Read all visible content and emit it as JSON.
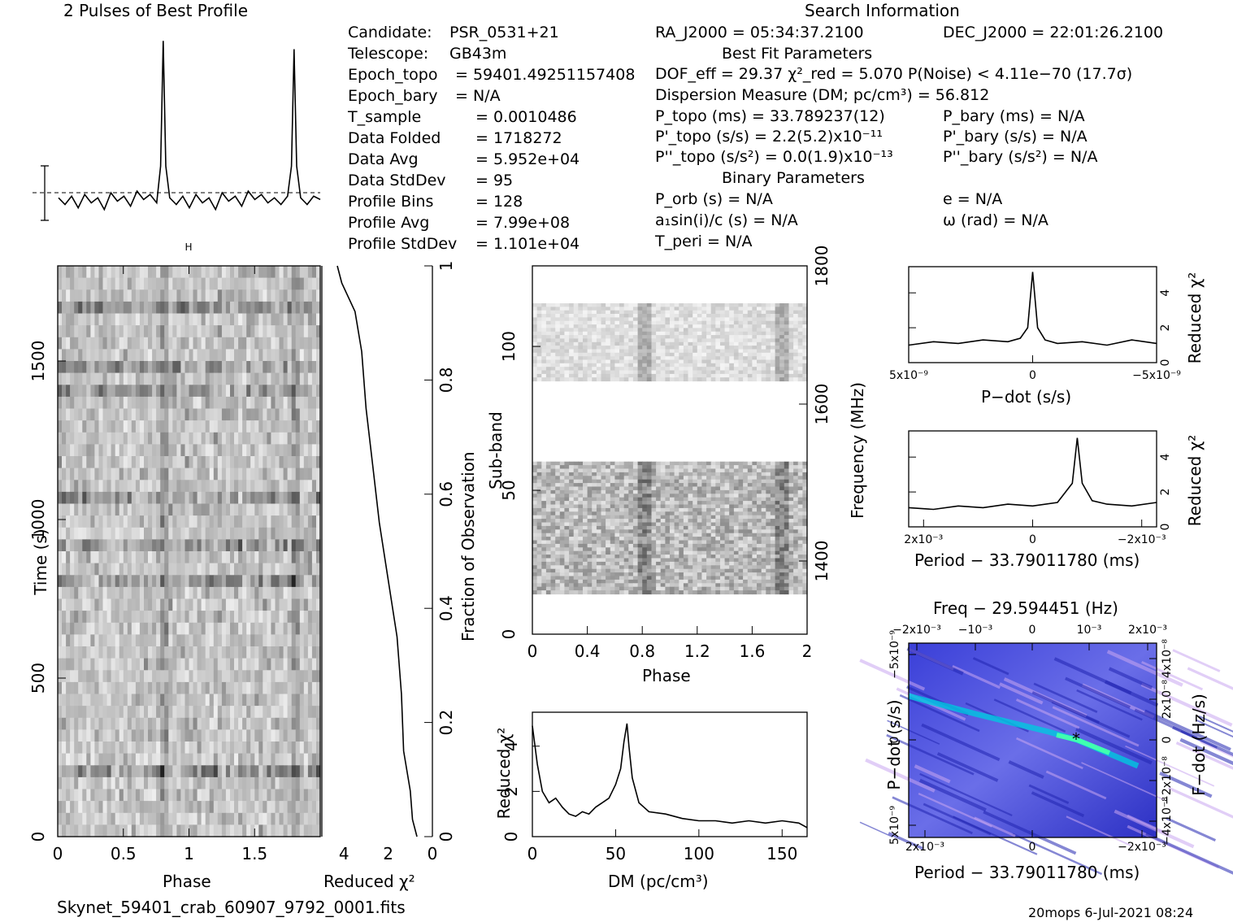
{
  "titles": {
    "profile": "2 Pulses of Best Profile",
    "search": "Search Information",
    "best_fit": "Best Fit Parameters",
    "binary": "Binary Parameters",
    "footer_file": "Skynet_59401_crab_60907_9792_0001.fits",
    "footer_right": "20mops   6-Jul-2021 08:24"
  },
  "info_left": [
    {
      "label": "Candidate:",
      "value": "PSR_0531+21"
    },
    {
      "label": "Telescope:",
      "value": "GB43m"
    },
    {
      "label": "Epoch_topo",
      "value": "= 59401.49251157408"
    },
    {
      "label": "Epoch_bary",
      "value": "= N/A"
    },
    {
      "label": "T_sample",
      "value": "= 0.0010486"
    },
    {
      "label": "Data Folded",
      "value": "= 1718272"
    },
    {
      "label": "Data Avg",
      "value": "= 5.952e+04"
    },
    {
      "label": "Data StdDev",
      "value": "= 95"
    },
    {
      "label": "Profile Bins",
      "value": "= 128"
    },
    {
      "label": "Profile Avg",
      "value": "= 7.99e+08"
    },
    {
      "label": "Profile StdDev",
      "value": "= 1.101e+04"
    }
  ],
  "info_mid": {
    "ra": "RA_J2000 = 05:34:37.2100",
    "dec": "DEC_J2000 = 22:01:26.2100",
    "dof": "DOF_eff = 29.37  χ²_red = 5.070  P(Noise) < 4.11e−70  (17.7σ)",
    "dm": "Dispersion Measure (DM; pc/cm³) = 56.812",
    "ptopo": "P_topo (ms) =  33.789237(12)",
    "pbary": "P_bary (ms) = N/A",
    "pdtopo": "P'_topo (s/s) =  2.2(5.2)x10⁻¹¹",
    "pdbary": "P'_bary (s/s) = N/A",
    "pddtopo": "P''_topo (s/s²) = 0.0(1.9)x10⁻¹³",
    "pddbary": "P''_bary (s/s²) = N/A",
    "porb": "P_orb (s) = N/A",
    "e": "e = N/A",
    "a1": "a₁sin(i)/c (s) = N/A",
    "omega": "ω (rad) = N/A",
    "tperi": "T_peri = N/A"
  },
  "axes": {
    "time_ylabel": "Time (s)",
    "phase_xlabel": "Phase",
    "redchi_xlabel": "Reduced χ²",
    "fraction_ylabel": "Fraction of Observation",
    "subband_ylabel": "Sub-band",
    "freq_ylabel": "Frequency (MHz)",
    "phase2_xlabel": "Phase",
    "dm_xlabel": "DM (pc/cm³)",
    "dm_ylabel": "Reduced χ²",
    "pdot_xlabel": "P−dot (s/s)",
    "pdot_ylabel": "Reduced χ²",
    "period_xlabel": "Period − 33.79011780 (ms)",
    "period_ylabel": "Reduced χ²",
    "freq_title": "Freq − 29.594451 (Hz)",
    "pp_xlabel": "Period − 33.79011780 (ms)",
    "pp_ylabel": "P−dot (s/s)",
    "pp_ylabel_right": "F−dot (Hz/s)"
  },
  "colors": {
    "axis": "#000000",
    "map_low": "#2a2fd0",
    "map_high": "#00ffcc"
  },
  "chart_data": [
    {
      "type": "line",
      "title": "2 Pulses of Best Profile",
      "xlabel": "",
      "ylabel": "",
      "x": [
        0.0,
        0.05,
        0.1,
        0.15,
        0.2,
        0.25,
        0.3,
        0.35,
        0.4,
        0.45,
        0.5,
        0.55,
        0.6,
        0.65,
        0.7,
        0.75,
        0.78,
        0.8,
        0.82,
        0.85,
        0.9,
        0.95,
        1.0,
        1.05,
        1.1,
        1.15,
        1.2,
        1.25,
        1.3,
        1.35,
        1.4,
        1.45,
        1.5,
        1.55,
        1.6,
        1.65,
        1.7,
        1.75,
        1.78,
        1.8,
        1.82,
        1.85,
        1.9,
        1.95,
        2.0
      ],
      "values": [
        0.1,
        -0.3,
        0.2,
        -0.5,
        0.3,
        -0.2,
        0.1,
        -0.6,
        0.4,
        -0.1,
        0.2,
        -0.4,
        0.5,
        0.0,
        0.3,
        -0.2,
        2.0,
        9.5,
        2.0,
        0.1,
        -0.3,
        0.2,
        -0.5,
        0.3,
        -0.2,
        0.1,
        -0.6,
        0.4,
        -0.1,
        0.2,
        -0.4,
        0.5,
        0.0,
        0.3,
        -0.2,
        0.1,
        -0.3,
        0.2,
        2.0,
        9.0,
        2.0,
        0.1,
        -0.3,
        0.2,
        0.0
      ]
    },
    {
      "type": "heatmap",
      "xlabel": "Phase",
      "ylabel": "Time (s)",
      "xlim": [
        0,
        2
      ],
      "ylim": [
        0,
        1800
      ],
      "x_ticks": [
        "0",
        "0.5",
        "1",
        "1.5"
      ],
      "y_ticks": [
        "0",
        "500",
        "1000",
        "1500"
      ]
    },
    {
      "type": "line",
      "xlabel": "Reduced χ²",
      "ylabel": "Fraction of Observation",
      "xlim": [
        5,
        0
      ],
      "ylim": [
        0,
        1
      ],
      "x_ticks": [
        "4",
        "2",
        "0"
      ],
      "y_ticks": [
        "0",
        "0.2",
        "0.4",
        "0.6",
        "0.8",
        "1"
      ],
      "points": [
        [
          0.7,
          0.0
        ],
        [
          0.9,
          0.03
        ],
        [
          1.0,
          0.08
        ],
        [
          1.3,
          0.15
        ],
        [
          1.4,
          0.25
        ],
        [
          1.6,
          0.35
        ],
        [
          2.0,
          0.45
        ],
        [
          2.4,
          0.55
        ],
        [
          2.7,
          0.65
        ],
        [
          3.0,
          0.75
        ],
        [
          3.2,
          0.85
        ],
        [
          3.5,
          0.92
        ],
        [
          4.1,
          0.97
        ],
        [
          4.3,
          1.0
        ]
      ]
    },
    {
      "type": "heatmap",
      "xlabel": "Phase",
      "ylabel": "Sub-band",
      "xlim": [
        0,
        2
      ],
      "ylim": [
        0,
        128
      ],
      "x_ticks": [
        "0",
        "0.4",
        "0.8",
        "1.2",
        "1.6",
        "2"
      ],
      "y_ticks": [
        "0",
        "50",
        "100"
      ],
      "y2label": "Frequency (MHz)",
      "y2_ticks": [
        "1400",
        "1600",
        "1800"
      ]
    },
    {
      "type": "line",
      "xlabel": "DM (pc/cm³)",
      "ylabel": "Reduced χ²",
      "xlim": [
        0,
        165
      ],
      "ylim": [
        0,
        5.5
      ],
      "x_ticks": [
        "0",
        "50",
        "100",
        "150"
      ],
      "y_ticks": [
        "0",
        "2",
        "4"
      ],
      "x": [
        0,
        3,
        6,
        10,
        14,
        18,
        22,
        26,
        30,
        34,
        38,
        42,
        46,
        50,
        53,
        55,
        56.8,
        58,
        60,
        64,
        70,
        80,
        90,
        100,
        110,
        120,
        130,
        140,
        150,
        160,
        165
      ],
      "values": [
        4.9,
        3.2,
        2.0,
        1.5,
        1.7,
        1.3,
        1.0,
        0.9,
        1.1,
        1.0,
        1.3,
        1.5,
        1.7,
        2.3,
        3.0,
        4.2,
        5.0,
        4.0,
        2.6,
        1.5,
        1.1,
        1.0,
        0.8,
        0.7,
        0.7,
        0.6,
        0.7,
        0.6,
        0.7,
        0.6,
        0.4
      ]
    },
    {
      "type": "line",
      "xlabel": "P−dot (s/s)",
      "ylabel": "Reduced χ²",
      "xlim": [
        5e-09,
        -5e-09
      ],
      "ylim": [
        0,
        5.5
      ],
      "x_ticks": [
        "5x10⁻⁹",
        "0",
        "−5x10⁻⁹"
      ],
      "y_ticks": [
        "0",
        "2",
        "4"
      ],
      "x": [
        5e-09,
        4e-09,
        3e-09,
        2e-09,
        1e-09,
        5e-10,
        2e-10,
        0,
        -2e-10,
        -5e-10,
        -1e-09,
        -2e-09,
        -3e-09,
        -4e-09,
        -5e-09
      ],
      "values": [
        1.0,
        1.2,
        1.1,
        1.3,
        1.2,
        1.4,
        2.0,
        5.2,
        2.0,
        1.3,
        1.1,
        1.2,
        1.0,
        1.3,
        1.1
      ]
    },
    {
      "type": "line",
      "xlabel": "Period − 33.79011780 (ms)",
      "ylabel": "Reduced χ²",
      "xlim": [
        0.0025,
        -0.0025
      ],
      "ylim": [
        0,
        5.5
      ],
      "x_ticks": [
        "2x10⁻³",
        "0",
        "−2x10⁻³"
      ],
      "y_ticks": [
        "0",
        "2",
        "4"
      ],
      "x": [
        0.0025,
        0.002,
        0.0015,
        0.001,
        0.0005,
        0,
        -0.0005,
        -0.0008,
        -0.0009,
        -0.001,
        -0.0012,
        -0.0015,
        -0.002,
        -0.0025
      ],
      "values": [
        1.1,
        1.0,
        1.2,
        1.1,
        1.3,
        1.2,
        1.4,
        2.5,
        5.1,
        2.5,
        1.5,
        1.3,
        1.2,
        1.4
      ]
    },
    {
      "type": "heatmap",
      "title": "Freq − 29.594451 (Hz)",
      "xlabel": "Period − 33.79011780 (ms)",
      "ylabel": "P−dot (s/s)",
      "y2label": "F−dot (Hz/s)",
      "x_ticks": [
        "2x10⁻³",
        "0",
        "−2x10⁻³"
      ],
      "x_top_ticks": [
        "−2x10⁻³",
        "−10⁻³",
        "0",
        "10⁻³",
        "2x10⁻³"
      ],
      "y_ticks": [
        "5x10⁻⁹",
        "0",
        "−5x10⁻⁹"
      ],
      "y2_ticks": [
        "−4x10⁻⁸",
        "−2x10⁻⁸",
        "0",
        "2x10⁻⁸",
        "4x10⁻⁸"
      ]
    }
  ]
}
